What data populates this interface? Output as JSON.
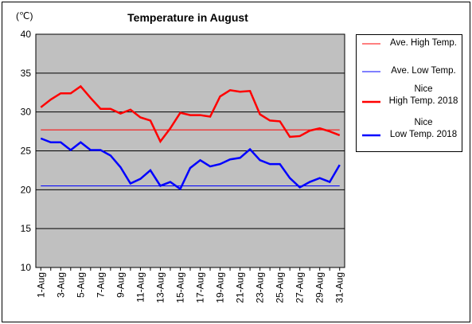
{
  "chart_data": {
    "type": "line",
    "title": "Temperature in August",
    "y_label": "(℃)",
    "categories": [
      "1-Aug",
      null,
      "3-Aug",
      null,
      "5-Aug",
      null,
      "7-Aug",
      null,
      "9-Aug",
      null,
      "11-Aug",
      null,
      "13-Aug",
      null,
      "15-Aug",
      null,
      "17-Aug",
      null,
      "19-Aug",
      null,
      "21-Aug",
      null,
      "23-Aug",
      null,
      "25-Aug",
      null,
      "27-Aug",
      null,
      "29-Aug",
      null,
      "31-Aug"
    ],
    "series": [
      {
        "name": "Ave. High Temp.",
        "color": "#ff0000",
        "width": 1,
        "values": [
          27.7,
          27.7,
          27.7,
          27.7,
          27.7,
          27.7,
          27.7,
          27.7,
          27.7,
          27.7,
          27.7,
          27.7,
          27.7,
          27.7,
          27.7,
          27.7,
          27.7,
          27.7,
          27.7,
          27.7,
          27.7,
          27.7,
          27.7,
          27.7,
          27.7,
          27.7,
          27.7,
          27.7,
          27.7,
          27.7,
          27.7
        ]
      },
      {
        "name": "Ave. Low Temp.",
        "color": "#0000ff",
        "width": 1,
        "values": [
          20.5,
          20.5,
          20.5,
          20.5,
          20.5,
          20.5,
          20.5,
          20.5,
          20.5,
          20.5,
          20.5,
          20.5,
          20.5,
          20.5,
          20.5,
          20.5,
          20.5,
          20.5,
          20.5,
          20.5,
          20.5,
          20.5,
          20.5,
          20.5,
          20.5,
          20.5,
          20.5,
          20.5,
          20.5,
          20.5,
          20.5
        ]
      },
      {
        "name": "Nice\nHigh Temp. 2018",
        "color": "#ff0000",
        "width": 2.5,
        "values": [
          30.6,
          31.6,
          32.4,
          32.4,
          33.3,
          31.8,
          30.4,
          30.4,
          29.8,
          30.3,
          29.3,
          28.9,
          26.2,
          27.9,
          29.9,
          29.6,
          29.6,
          29.4,
          32.0,
          32.8,
          32.6,
          32.7,
          29.7,
          28.9,
          28.8,
          26.8,
          26.9,
          27.6,
          27.9,
          27.5,
          27.0
        ]
      },
      {
        "name": "Nice\nLow Temp. 2018",
        "color": "#0000ff",
        "width": 2.5,
        "values": [
          26.6,
          26.1,
          26.1,
          25.1,
          26.1,
          25.1,
          25.1,
          24.4,
          22.9,
          20.8,
          21.4,
          22.5,
          20.5,
          21.0,
          20.1,
          22.8,
          23.8,
          23.0,
          23.3,
          23.9,
          24.1,
          25.2,
          23.8,
          23.3,
          23.3,
          21.5,
          20.3,
          21.0,
          21.5,
          21.0,
          23.2
        ]
      }
    ],
    "ylim": [
      10,
      40
    ],
    "yticks": [
      10,
      15,
      20,
      25,
      30,
      35,
      40
    ],
    "grid": true,
    "plot_background": "#c0c0c0"
  }
}
